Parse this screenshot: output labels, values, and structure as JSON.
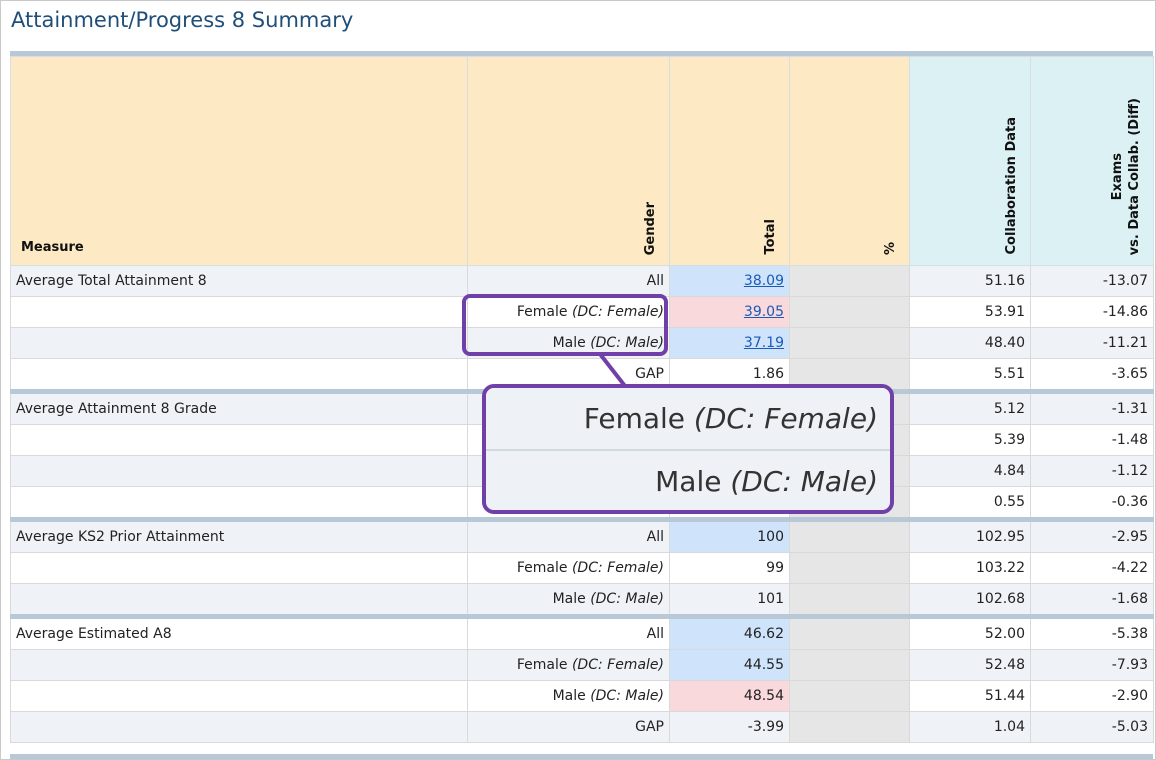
{
  "page": {
    "title": "Attainment/Progress 8 Summary"
  },
  "columns": {
    "measure": "Measure",
    "gender": "Gender",
    "total": "Total",
    "percent": "%",
    "collab": "Collaboration Data",
    "diff_line1": "Exams",
    "diff_line2": "vs. Data Collab. (Diff)"
  },
  "rows": [
    {
      "measure": "Average Total Attainment 8",
      "gender": "All",
      "dc": "",
      "total": "38.09",
      "pct": "",
      "collab": "51.16",
      "diff": "-13.07"
    },
    {
      "measure": "",
      "gender": "Female",
      "dc": "(DC: Female)",
      "total": "39.05",
      "pct": "",
      "collab": "53.91",
      "diff": "-14.86"
    },
    {
      "measure": "",
      "gender": "Male",
      "dc": "(DC: Male)",
      "total": "37.19",
      "pct": "",
      "collab": "48.40",
      "diff": "-11.21"
    },
    {
      "measure": "",
      "gender": "GAP",
      "dc": "",
      "total": "1.86",
      "pct": "",
      "collab": "5.51",
      "diff": "-3.65"
    },
    {
      "measure": "Average Attainment 8 Grade",
      "gender": "",
      "dc": "",
      "total": "",
      "pct": "",
      "collab": "5.12",
      "diff": "-1.31"
    },
    {
      "measure": "",
      "gender": "",
      "dc": "",
      "total": "",
      "pct": "",
      "collab": "5.39",
      "diff": "-1.48"
    },
    {
      "measure": "",
      "gender": "",
      "dc": "",
      "total": "",
      "pct": "",
      "collab": "4.84",
      "diff": "-1.12"
    },
    {
      "measure": "",
      "gender": "",
      "dc": "",
      "total": "",
      "pct": "",
      "collab": "0.55",
      "diff": "-0.36"
    },
    {
      "measure": "Average KS2 Prior Attainment",
      "gender": "All",
      "dc": "",
      "total": "100",
      "pct": "",
      "collab": "102.95",
      "diff": "-2.95"
    },
    {
      "measure": "",
      "gender": "Female",
      "dc": "(DC: Female)",
      "total": "99",
      "pct": "",
      "collab": "103.22",
      "diff": "-4.22"
    },
    {
      "measure": "",
      "gender": "Male",
      "dc": "(DC: Male)",
      "total": "101",
      "pct": "",
      "collab": "102.68",
      "diff": "-1.68"
    },
    {
      "measure": "Average Estimated A8",
      "gender": "All",
      "dc": "",
      "total": "46.62",
      "pct": "",
      "collab": "52.00",
      "diff": "-5.38"
    },
    {
      "measure": "",
      "gender": "Female",
      "dc": "(DC: Female)",
      "total": "44.55",
      "pct": "",
      "collab": "52.48",
      "diff": "-7.93"
    },
    {
      "measure": "",
      "gender": "Male",
      "dc": "(DC: Male)",
      "total": "48.54",
      "pct": "",
      "collab": "51.44",
      "diff": "-2.90"
    },
    {
      "measure": "",
      "gender": "GAP",
      "dc": "",
      "total": "-3.99",
      "pct": "",
      "collab": "1.04",
      "diff": "-5.03"
    }
  ],
  "zoom": {
    "row1_gender": "Female",
    "row1_dc": "(DC: Female)",
    "row2_gender": "Male",
    "row2_dc": "(DC: Male)"
  },
  "colors": {
    "title": "#1f4e79",
    "header_orange": "#fdeac5",
    "header_cyan": "#dbf1f3",
    "cell_blue": "#cfe3fb",
    "cell_pink": "#fad9dd",
    "highlight": "#7040a8"
  }
}
